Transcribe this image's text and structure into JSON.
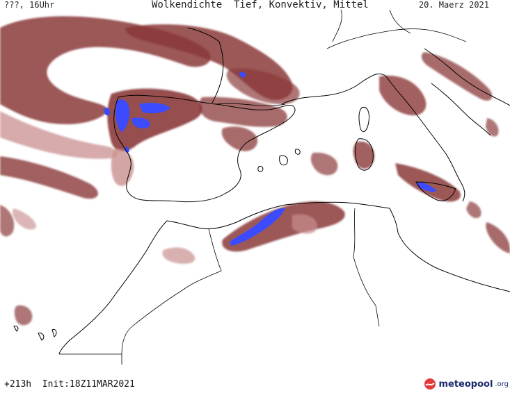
{
  "header": {
    "left": "???, 16Uhr",
    "title": "Wolkendichte  Tief, Konvektiv, Mittel",
    "date": "20. Maerz 2021"
  },
  "footer": {
    "run_info": "+213h  Init:18Z11MAR2021",
    "logo_text": "meteopool",
    "logo_suffix": ".org"
  },
  "colors": {
    "cloud": "#8b3a3a",
    "cloud_light": "#c98f8f",
    "convective": "#3d4bff",
    "coast": "#000000"
  }
}
